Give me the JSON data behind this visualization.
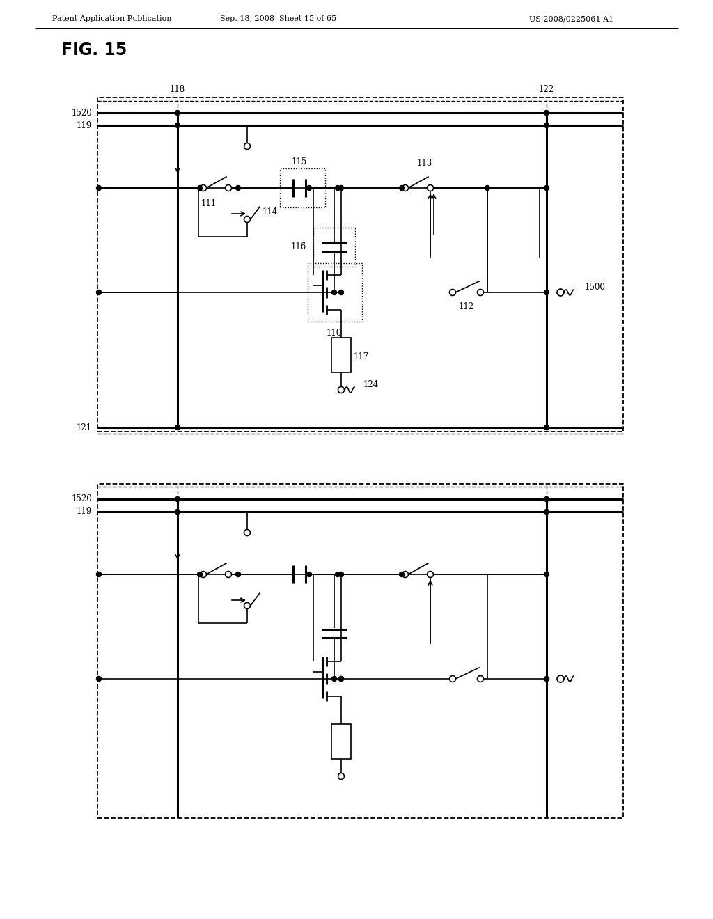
{
  "header_left": "Patent Application Publication",
  "header_center": "Sep. 18, 2008  Sheet 15 of 65",
  "header_right": "US 2008/0225061 A1",
  "fig_title": "FIG. 15",
  "bg": "#ffffff"
}
